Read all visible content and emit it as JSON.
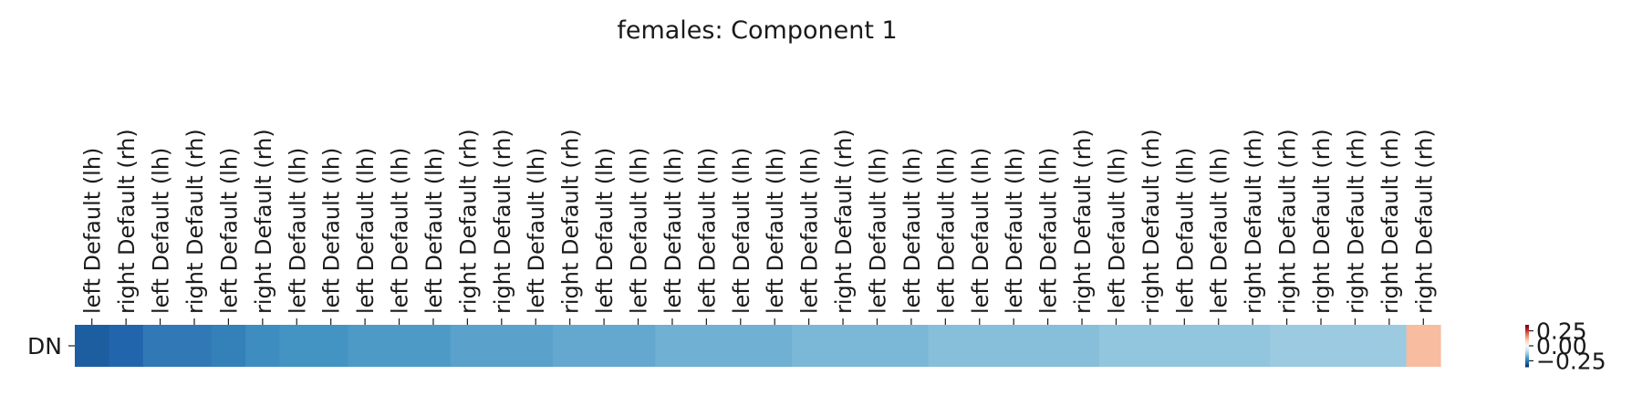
{
  "chart_data": {
    "type": "heatmap",
    "title": "females: Component 1",
    "xlabel": "",
    "ylabel": "",
    "rows": [
      "DN"
    ],
    "columns": [
      "left Default (lh)",
      "right Default (rh)",
      "left Default (lh)",
      "right Default (rh)",
      "left Default (lh)",
      "right Default (rh)",
      "left Default (lh)",
      "left Default (lh)",
      "left Default (lh)",
      "left Default (lh)",
      "left Default (lh)",
      "right Default (rh)",
      "right Default (rh)",
      "left Default (lh)",
      "right Default (rh)",
      "left Default (lh)",
      "left Default (lh)",
      "left Default (lh)",
      "left Default (lh)",
      "left Default (lh)",
      "left Default (lh)",
      "left Default (lh)",
      "right Default (rh)",
      "left Default (lh)",
      "left Default (lh)",
      "left Default (lh)",
      "left Default (lh)",
      "left Default (lh)",
      "left Default (lh)",
      "right Default (rh)",
      "left Default (lh)",
      "right Default (rh)",
      "left Default (lh)",
      "left Default (lh)",
      "right Default (rh)",
      "right Default (rh)",
      "right Default (rh)",
      "right Default (rh)",
      "right Default (rh)",
      "right Default (rh)"
    ],
    "values": [
      [
        -0.29,
        -0.28,
        -0.25,
        -0.25,
        -0.24,
        -0.22,
        -0.21,
        -0.21,
        -0.2,
        -0.2,
        -0.2,
        -0.19,
        -0.19,
        -0.19,
        -0.18,
        -0.18,
        -0.18,
        -0.17,
        -0.17,
        -0.17,
        -0.17,
        -0.16,
        -0.16,
        -0.16,
        -0.16,
        -0.15,
        -0.15,
        -0.15,
        -0.15,
        -0.15,
        -0.14,
        -0.14,
        -0.14,
        -0.14,
        -0.14,
        -0.13,
        -0.13,
        -0.13,
        -0.13,
        0.11
      ]
    ],
    "colorbar": {
      "ticks": [
        "0.25",
        "0.00",
        "−0.25"
      ],
      "range": [
        -0.35,
        0.35
      ]
    },
    "colormap": "RdBu_r"
  }
}
